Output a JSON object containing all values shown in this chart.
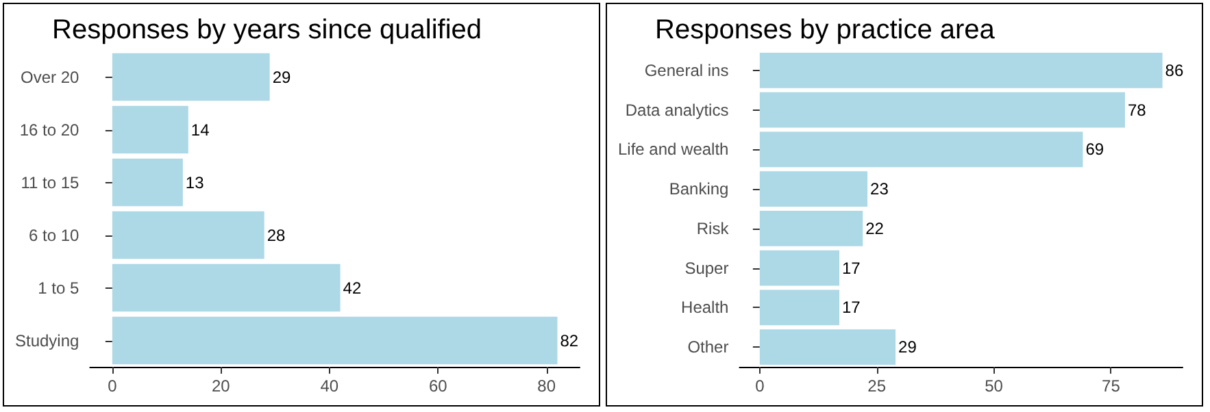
{
  "chart_data": [
    {
      "type": "bar",
      "orientation": "horizontal",
      "title": "Responses by years since qualified",
      "categories": [
        "Over 20",
        "16 to 20",
        "11 to 15",
        "6 to 10",
        "1 to 5",
        "Studying"
      ],
      "values": [
        29,
        14,
        13,
        28,
        42,
        82
      ],
      "color": "#add8e6",
      "xlim": [
        -4.1,
        86.1
      ],
      "xticks": [
        0,
        20,
        40,
        60,
        80
      ],
      "data_labels": true,
      "grid": false
    },
    {
      "type": "bar",
      "orientation": "horizontal",
      "title": "Responses by practice area",
      "categories": [
        "General ins",
        "Data analytics",
        "Life and wealth",
        "Banking",
        "Risk",
        "Super",
        "Health",
        "Other"
      ],
      "values": [
        86,
        78,
        69,
        23,
        22,
        17,
        17,
        29
      ],
      "color": "#add8e6",
      "xlim": [
        -4.3,
        90.3
      ],
      "xticks": [
        0,
        25,
        50,
        75
      ],
      "data_labels": true,
      "grid": false
    }
  ]
}
